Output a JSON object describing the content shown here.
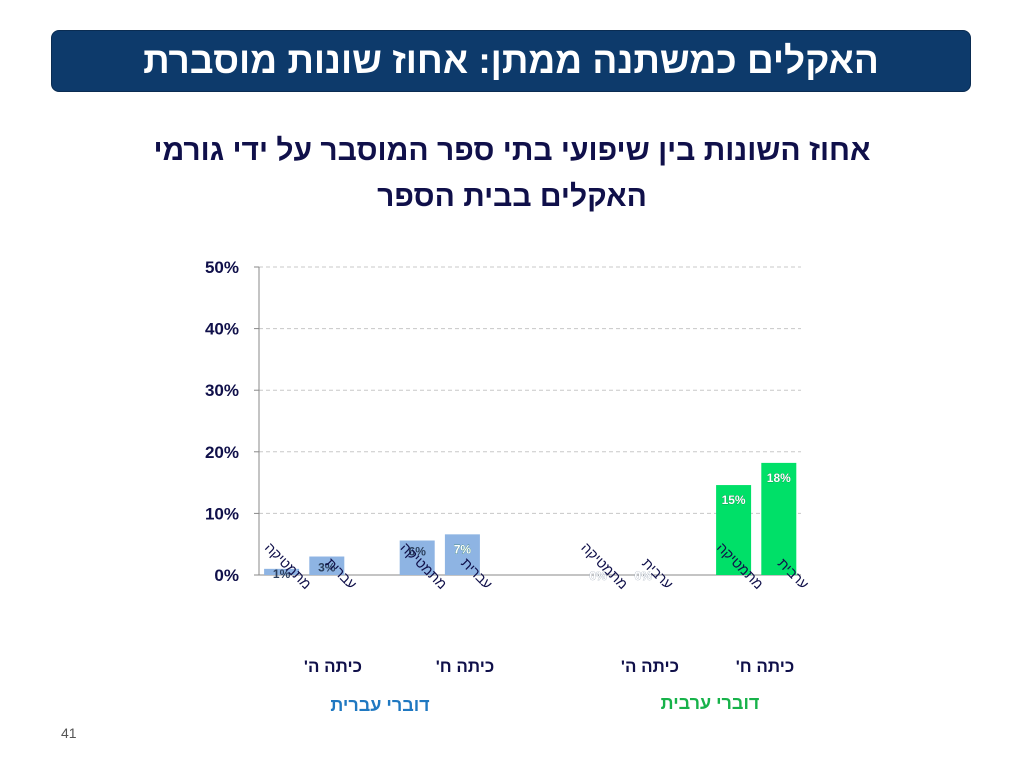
{
  "slide": {
    "title": "האקלים כמשתנה ממתן: אחוז שונות מוסברת",
    "subtitle_line1": "אחוז השונות בין שיפועי בתי ספר המוסבר על ידי גורמי",
    "subtitle_line2": "האקלים בבית הספר",
    "page_number": "41"
  },
  "chart_data": {
    "type": "bar",
    "title": "",
    "xlabel": "",
    "ylabel": "",
    "ylim": [
      0,
      50
    ],
    "yticks": [
      "0%",
      "10%",
      "20%",
      "30%",
      "40%",
      "50%"
    ],
    "grid": true,
    "groups": [
      {
        "name": "דוברי עברית",
        "color": "#1f78c1",
        "bar_color": "#8eb4e3",
        "grades": [
          {
            "grade": "כיתה ה'",
            "bars": [
              {
                "category": "מתמטיקה",
                "value": 1,
                "label": "1%"
              },
              {
                "category": "עברית",
                "value": 3,
                "label": "3%"
              }
            ]
          },
          {
            "grade": "כיתה ח'",
            "bars": [
              {
                "category": "מתמטיקה",
                "value": 5.6,
                "label": "6%"
              },
              {
                "category": "עברית",
                "value": 6.6,
                "label": "7%"
              }
            ]
          }
        ]
      },
      {
        "name": "דוברי ערבית",
        "color": "#17b24a",
        "bar_color": "#00e068",
        "grades": [
          {
            "grade": "כיתה ה'",
            "bars": [
              {
                "category": "מתמטיקה",
                "value": 0,
                "label": "0%"
              },
              {
                "category": "ערבית",
                "value": 0,
                "label": "0%"
              }
            ]
          },
          {
            "grade": "כיתה ח'",
            "bars": [
              {
                "category": "מתמטיקה",
                "value": 14.6,
                "label": "15%"
              },
              {
                "category": "ערבית",
                "value": 18.2,
                "label": "18%"
              }
            ]
          }
        ]
      }
    ]
  }
}
